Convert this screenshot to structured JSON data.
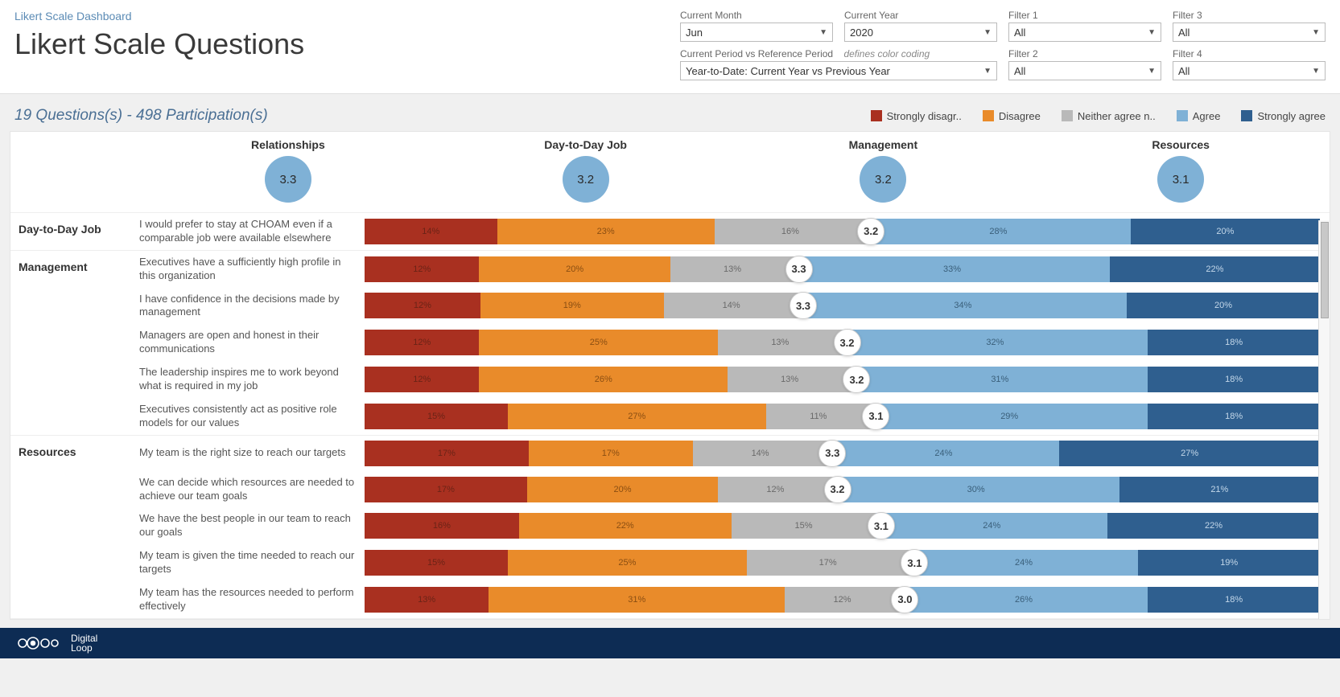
{
  "breadcrumb": "Likert Scale Dashboard",
  "title": "Likert Scale Questions",
  "filters": {
    "month": {
      "label": "Current Month",
      "value": "Jun"
    },
    "year": {
      "label": "Current Year",
      "value": "2020"
    },
    "f1": {
      "label": "Filter 1",
      "value": "All"
    },
    "f3": {
      "label": "Filter 3",
      "value": "All"
    },
    "period": {
      "label": "Current Period vs Reference Period",
      "hint": "defines color coding",
      "value": "Year-to-Date: Current Year vs Previous Year"
    },
    "f2": {
      "label": "Filter 2",
      "value": "All"
    },
    "f4": {
      "label": "Filter 4",
      "value": "All"
    }
  },
  "summary": "19 Questions(s)  -  498 Participation(s)",
  "legend": {
    "items": [
      {
        "label": "Strongly disagr..",
        "color": "#a93020"
      },
      {
        "label": "Disagree",
        "color": "#e98b2a"
      },
      {
        "label": "Neither agree n..",
        "color": "#b9b9b9"
      },
      {
        "label": "Agree",
        "color": "#7fb1d6"
      },
      {
        "label": "Strongly agree",
        "color": "#2f5f8f"
      }
    ]
  },
  "colors": {
    "sd": "#a93020",
    "d": "#e98b2a",
    "n": "#b9b9b9",
    "a": "#7fb1d6",
    "sa": "#2f5f8f",
    "bubble": "#7fb1d6",
    "seg_text_dark": "#6b2316",
    "seg_text_orange": "#8a4e12",
    "seg_text_gray": "#6a6a6a",
    "seg_text_blue": "#3a5f7a",
    "seg_text_navy": "#c3d7e9"
  },
  "categories": [
    {
      "label": "Relationships",
      "score": "3.3"
    },
    {
      "label": "Day-to-Day Job",
      "score": "3.2"
    },
    {
      "label": "Management",
      "score": "3.2"
    },
    {
      "label": "Resources",
      "score": "3.1"
    }
  ],
  "sections": [
    {
      "group": "Day-to-Day Job",
      "rows": [
        {
          "q": "I would prefer to stay at CHOAM even if a comparable job were available elsewhere",
          "score": "3.2",
          "vals": [
            14,
            23,
            16,
            28,
            20
          ]
        }
      ]
    },
    {
      "group": "Management",
      "rows": [
        {
          "q": "Executives have a sufficiently high profile in this organization",
          "score": "3.3",
          "vals": [
            12,
            20,
            13,
            33,
            22
          ]
        },
        {
          "q": "I have confidence in the decisions made by management",
          "score": "3.3",
          "vals": [
            12,
            19,
            14,
            34,
            20
          ]
        },
        {
          "q": "Managers are open and honest in their communications",
          "score": "3.2",
          "vals": [
            12,
            25,
            13,
            32,
            18
          ]
        },
        {
          "q": "The leadership inspires me to work beyond what is required in my job",
          "score": "3.2",
          "vals": [
            12,
            26,
            13,
            31,
            18
          ]
        },
        {
          "q": "Executives consistently act as positive role models for our values",
          "score": "3.1",
          "vals": [
            15,
            27,
            11,
            29,
            18
          ]
        }
      ]
    },
    {
      "group": "Resources",
      "rows": [
        {
          "q": "My team is the right size to reach our targets",
          "score": "3.3",
          "vals": [
            17,
            17,
            14,
            24,
            27
          ]
        },
        {
          "q": "We can decide which resources are needed to achieve our team goals",
          "score": "3.2",
          "vals": [
            17,
            20,
            12,
            30,
            21
          ]
        },
        {
          "q": "We have the best people in our team to reach our goals",
          "score": "3.1",
          "vals": [
            16,
            22,
            15,
            24,
            22
          ]
        },
        {
          "q": "My team is given the time needed to reach our targets",
          "score": "3.1",
          "vals": [
            15,
            25,
            17,
            24,
            19
          ]
        },
        {
          "q": "My team has the resources needed to perform effectively",
          "score": "3.0",
          "vals": [
            13,
            31,
            12,
            26,
            18
          ]
        }
      ]
    }
  ],
  "footer": {
    "brand": "Digital",
    "brand2": "Loop"
  }
}
